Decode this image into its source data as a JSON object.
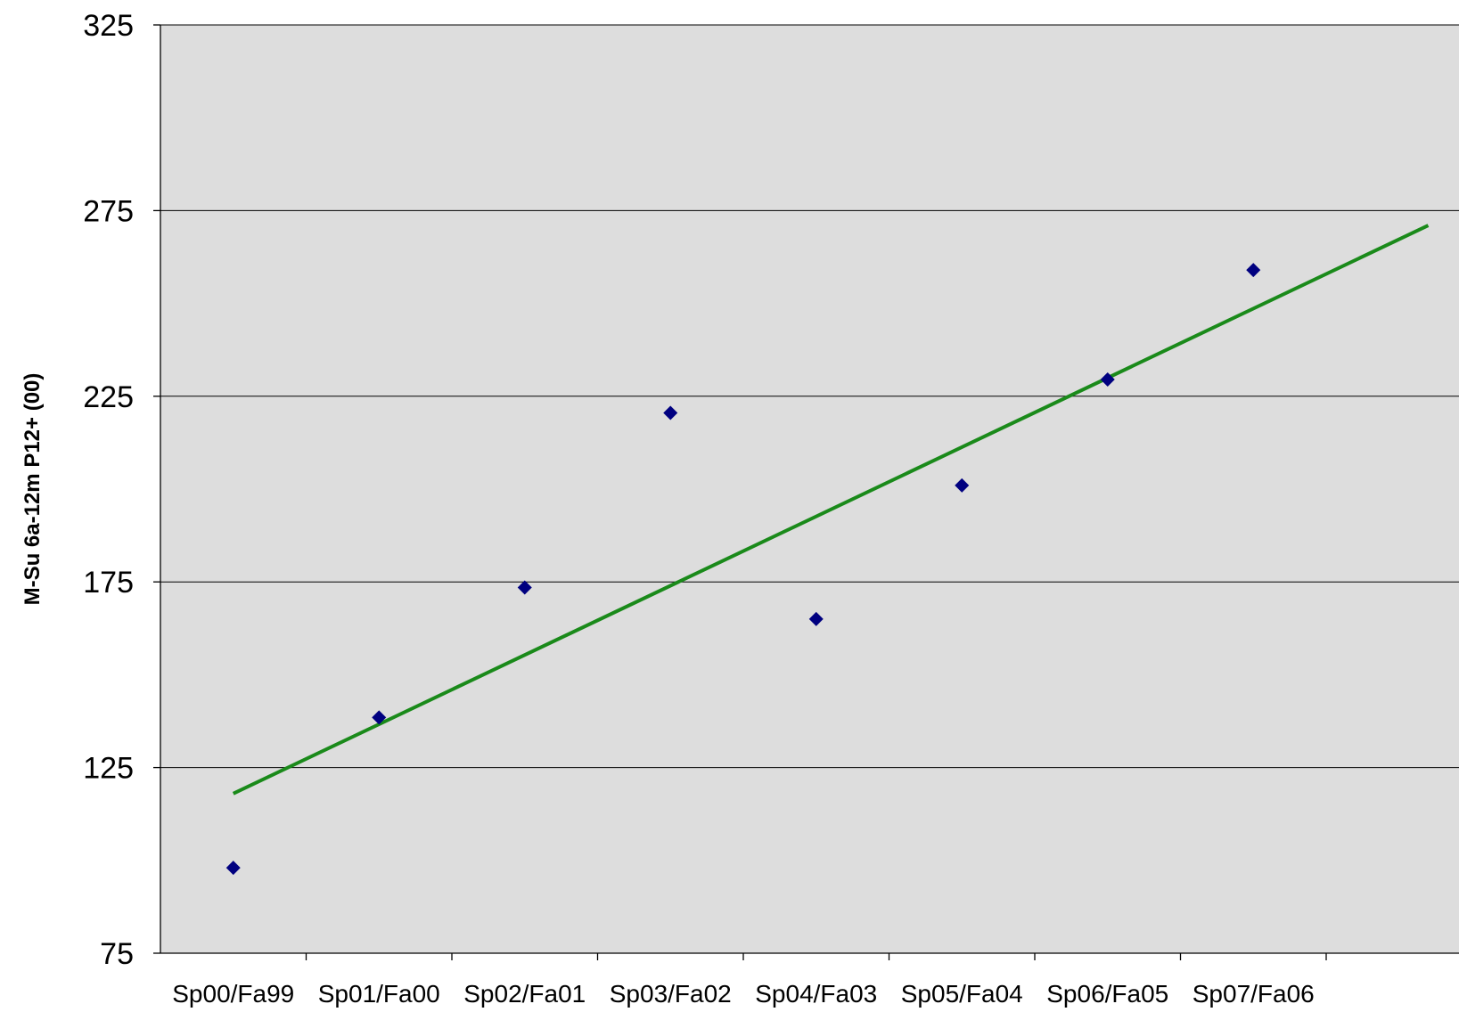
{
  "chart_data": {
    "type": "scatter",
    "ylabel": "M-Su 6a-12m P12+ (00)",
    "ylim": [
      75,
      325
    ],
    "y_ticks": [
      75,
      125,
      175,
      225,
      275,
      325
    ],
    "y_tick_labels": [
      "75",
      "125",
      "175",
      "225",
      "275",
      "325"
    ],
    "categories": [
      "Sp00/Fa99",
      "Sp01/Fa00",
      "Sp02/Fa01",
      "Sp03/Fa02",
      "Sp04/Fa03",
      "Sp05/Fa04",
      "Sp06/Fa05",
      "Sp07/Fa06"
    ],
    "series": [
      {
        "values": [
          98,
          138.5,
          173.5,
          220.5,
          165,
          201,
          229.5,
          259
        ]
      }
    ],
    "trendline": {
      "type": "linear",
      "x_start": 0,
      "x_end": 8.2,
      "y_start": 118,
      "y_end": 271
    },
    "grid": true,
    "colors": {
      "marker": "#000080",
      "trendline": "#1a8a1a",
      "plot_background": "#dddddd",
      "grid": "#000000"
    }
  }
}
